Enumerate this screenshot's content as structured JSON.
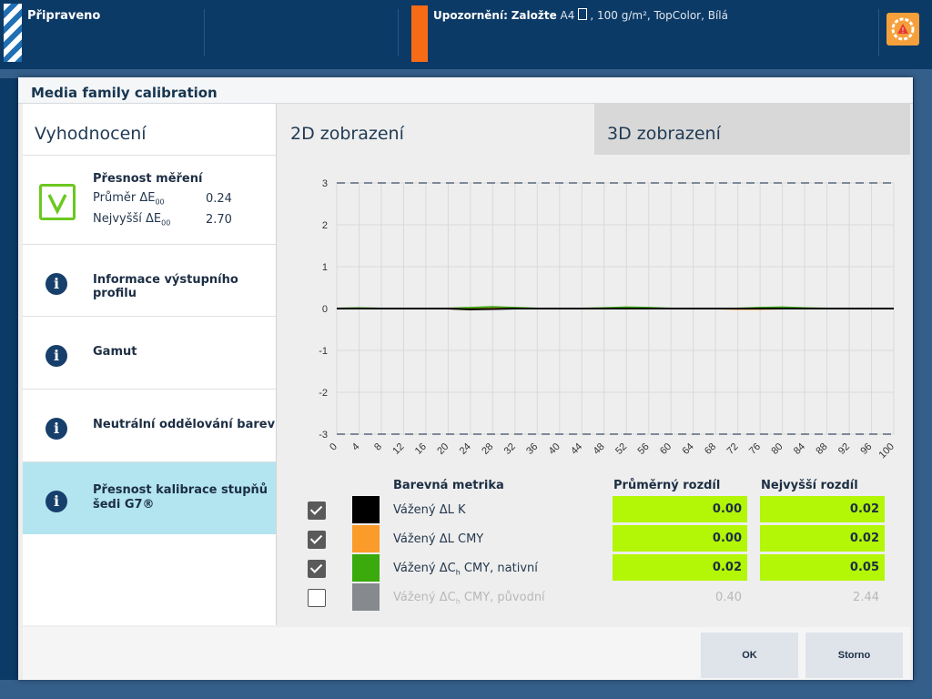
{
  "topbar": {
    "status": "Připraveno",
    "warning_prefix": "Upozornění:",
    "warning_action": "Založte",
    "warning_size": "A4",
    "warning_details": ", 100 g/m², TopColor, Bílá",
    "warning_color": "#f86b16"
  },
  "dialog": {
    "title": "Media family calibration",
    "left_title": "Vyhodnocení",
    "accuracy": {
      "title": "Přesnost měření",
      "avg_label": "Průměr ΔE",
      "avg_sub": "00",
      "avg_value": "0.24",
      "max_label": "Nejvyšší ΔE",
      "max_sub": "00",
      "max_value": "2.70"
    },
    "items": [
      {
        "label": "Informace výstupního profilu"
      },
      {
        "label": "Gamut"
      },
      {
        "label": "Neutrální oddělování barev"
      },
      {
        "label_line1": "Přesnost kalibrace stupňů",
        "label_line2": "šedi G7®",
        "active": true
      }
    ],
    "tabs": {
      "tab_2d": "2D zobrazení",
      "tab_3d": "3D zobrazení"
    },
    "legend": {
      "col_metric": "Barevná metrika",
      "col_avg": "Průměrný rozdíl",
      "col_max": "Nejvyšší rozdíl",
      "rows": [
        {
          "name": "Vážený ΔL K",
          "avg": "0.00",
          "max": "0.02",
          "color": "#000000",
          "checked": true
        },
        {
          "name": "Vážený ΔL CMY",
          "avg": "0.00",
          "max": "0.02",
          "color": "#fb9b2a",
          "checked": true
        },
        {
          "name_pre": "Vážený ΔC",
          "name_sub": "h",
          "name_post": " CMY, nativní",
          "avg": "0.02",
          "max": "0.05",
          "color": "#3aaa0c",
          "checked": true
        },
        {
          "name_pre": "Vážený ΔC",
          "name_sub": "h",
          "name_post": " CMY, původní",
          "avg": "0.40",
          "max": "2.44",
          "color": "#868a8e",
          "checked": false
        }
      ]
    },
    "buttons": {
      "ok": "OK",
      "cancel": "Storno"
    }
  },
  "chart_data": {
    "type": "line",
    "x_ticks": [
      "0",
      "4",
      "8",
      "12",
      "16",
      "20",
      "24",
      "28",
      "32",
      "36",
      "40",
      "44",
      "48",
      "52",
      "56",
      "60",
      "64",
      "68",
      "72",
      "76",
      "80",
      "84",
      "88",
      "92",
      "96",
      "100"
    ],
    "y_ticks": [
      "3",
      "2",
      "1",
      "0",
      "-1",
      "-2",
      "-3"
    ],
    "ylim": [
      -3,
      3
    ],
    "xlim": [
      0,
      100
    ],
    "limit_lines": [
      3,
      -3
    ],
    "grid": true,
    "series": [
      {
        "name": "Vážený ΔC",
        "color": "#3aaa0c",
        "points": [
          [
            0,
            0
          ],
          [
            4,
            0.01
          ],
          [
            8,
            0
          ],
          [
            12,
            0
          ],
          [
            16,
            0
          ],
          [
            20,
            0
          ],
          [
            24,
            0.02
          ],
          [
            28,
            0.04
          ],
          [
            32,
            0.02
          ],
          [
            36,
            0
          ],
          [
            40,
            0
          ],
          [
            44,
            0
          ],
          [
            48,
            0.01
          ],
          [
            52,
            0.03
          ],
          [
            56,
            0.02
          ],
          [
            60,
            0
          ],
          [
            64,
            0
          ],
          [
            68,
            0
          ],
          [
            72,
            0
          ],
          [
            76,
            0.02
          ],
          [
            80,
            0.03
          ],
          [
            84,
            0.01
          ],
          [
            88,
            0
          ],
          [
            92,
            0
          ],
          [
            96,
            0
          ],
          [
            100,
            0
          ]
        ]
      },
      {
        "name": "Vážený ΔL CMY",
        "color": "#fb9b2a",
        "points": [
          [
            0,
            0
          ],
          [
            4,
            0
          ],
          [
            8,
            0
          ],
          [
            12,
            0
          ],
          [
            16,
            0
          ],
          [
            20,
            0
          ],
          [
            24,
            -0.02
          ],
          [
            28,
            0
          ],
          [
            32,
            0
          ],
          [
            36,
            0
          ],
          [
            40,
            0
          ],
          [
            44,
            0
          ],
          [
            48,
            0
          ],
          [
            52,
            0
          ],
          [
            56,
            0
          ],
          [
            60,
            0
          ],
          [
            64,
            0
          ],
          [
            68,
            0
          ],
          [
            72,
            -0.01
          ],
          [
            76,
            -0.01
          ],
          [
            80,
            0
          ],
          [
            84,
            0
          ],
          [
            88,
            0
          ],
          [
            92,
            0
          ],
          [
            96,
            0
          ],
          [
            100,
            0
          ]
        ]
      },
      {
        "name": "Vážený ΔL K",
        "color": "#000000",
        "points": [
          [
            0,
            0
          ],
          [
            4,
            0
          ],
          [
            8,
            0
          ],
          [
            12,
            0
          ],
          [
            16,
            0
          ],
          [
            20,
            0
          ],
          [
            24,
            -0.02
          ],
          [
            28,
            -0.01
          ],
          [
            32,
            0
          ],
          [
            36,
            0
          ],
          [
            40,
            0
          ],
          [
            44,
            0
          ],
          [
            48,
            0
          ],
          [
            52,
            0
          ],
          [
            56,
            0
          ],
          [
            60,
            0
          ],
          [
            64,
            0
          ],
          [
            68,
            0
          ],
          [
            72,
            0
          ],
          [
            76,
            0
          ],
          [
            80,
            0
          ],
          [
            84,
            0
          ],
          [
            88,
            0
          ],
          [
            92,
            0
          ],
          [
            96,
            0
          ],
          [
            100,
            0
          ]
        ]
      }
    ]
  }
}
